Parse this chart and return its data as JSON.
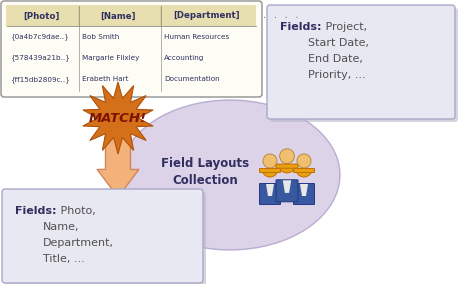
{
  "title": "Field Layouts\nCollection",
  "table_headers": [
    "[Photo]",
    "[Name]",
    "[Department]"
  ],
  "table_col1": [
    "{0a4b7c9dae..}",
    "{578439a21b..}",
    "{ff15db2809c..}"
  ],
  "table_col2": [
    "Bob Smith",
    "Margarie Flixley",
    "Erabeth Hart"
  ],
  "table_col3": [
    "Human Resources",
    "Accounting",
    "Documentation"
  ],
  "match_text": "MATCH!",
  "arrow_color": "#F2B27A",
  "arrow_outline": "#D4845A",
  "ellipse_color": "#C0B0D8",
  "ellipse_alpha": 0.55,
  "box_bg": "#E8E8F2",
  "box_border": "#A8A8C8",
  "box_shadow": "#B8B8C8",
  "table_bg": "#FDFDF5",
  "table_border": "#909090",
  "header_bg": "#D8C878",
  "header_text": "#303060",
  "data_text": "#303060",
  "star_fill": "#D4701A",
  "star_edge": "#B05008",
  "match_color": "#8B2000",
  "dots_color": "#8080A0",
  "field_bold_color": "#303060",
  "field_text_color": "#505050"
}
